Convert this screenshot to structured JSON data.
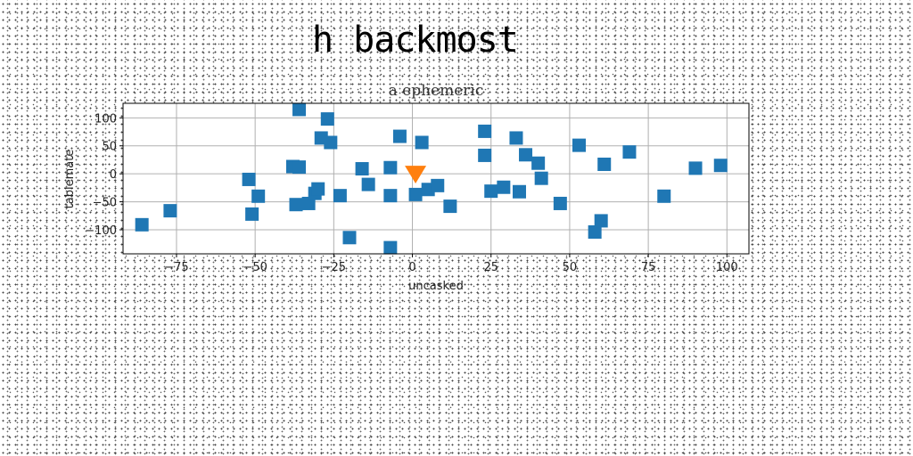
{
  "page": {
    "title": "h backmost"
  },
  "chart_data": {
    "type": "scatter",
    "title": "a ephemeric",
    "xlabel": "uncasked",
    "ylabel": "tablemate",
    "xlim": [
      -92,
      107
    ],
    "ylim": [
      -143,
      126
    ],
    "xticks": [
      -75,
      -50,
      -25,
      0,
      25,
      50,
      75,
      100
    ],
    "yticks": [
      -100,
      -50,
      0,
      50,
      100
    ],
    "grid": true,
    "series": [
      {
        "marker": "square",
        "color": "#1f77b4",
        "x": [
          -86,
          -77,
          -52,
          -51,
          -49,
          -38,
          -37,
          -36,
          -36,
          -33,
          -31,
          -30,
          -29,
          -27,
          -26,
          -23,
          -20,
          -16,
          -14,
          -7,
          -7,
          -7,
          -4,
          1,
          3,
          5,
          8,
          12,
          23,
          23,
          25,
          29,
          33,
          34,
          36,
          40,
          41,
          47,
          53,
          58,
          60,
          61,
          69,
          80,
          90,
          98
        ],
        "y": [
          -91,
          -66,
          -10,
          -72,
          -40,
          13,
          -55,
          12,
          115,
          -53,
          -35,
          -27,
          64,
          98,
          56,
          -39,
          -114,
          9,
          -19,
          -39,
          11,
          -132,
          67,
          -37,
          56,
          -28,
          -21,
          -58,
          76,
          33,
          -31,
          -24,
          64,
          -32,
          34,
          19,
          -8,
          -53,
          51,
          -104,
          -84,
          17,
          39,
          -40,
          10,
          15
        ]
      },
      {
        "marker": "triangle-down",
        "color": "#ff7f0e",
        "x": [
          1
        ],
        "y": [
          0
        ]
      }
    ]
  }
}
